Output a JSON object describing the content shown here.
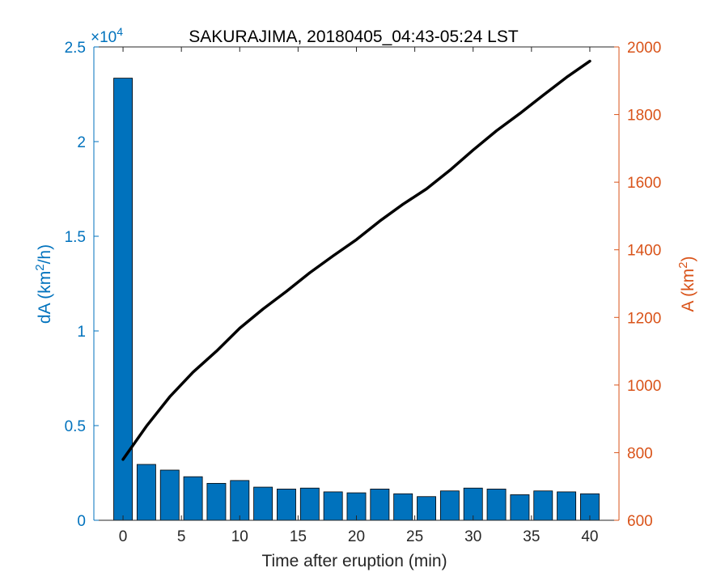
{
  "chart_data": {
    "type": "bar+line",
    "title": "SAKURAJIMA, 20180405_04:43-05:24 LST",
    "xlabel": "Time after eruption (min)",
    "xlim": [
      -2.5,
      42.5
    ],
    "xticks": [
      0,
      5,
      10,
      15,
      20,
      25,
      30,
      35,
      40
    ],
    "left_axis": {
      "label": "dA (km",
      "label_sup": "2",
      "label_tail": "/h)",
      "multiplier": "×10",
      "multiplier_exp": "4",
      "ylim": [
        0,
        2.5
      ],
      "ticks": [
        0,
        0.5,
        1,
        1.5,
        2,
        2.5
      ],
      "tick_labels": [
        "0",
        "0.5",
        "1",
        "1.5",
        "2",
        "2.5"
      ],
      "color": "#0072bd"
    },
    "right_axis": {
      "label": "A (km",
      "label_sup": "2",
      "label_tail": ")",
      "ylim": [
        600,
        2000
      ],
      "ticks": [
        600,
        800,
        1000,
        1200,
        1400,
        1600,
        1800,
        2000
      ],
      "tick_labels": [
        "600",
        "800",
        "1000",
        "1200",
        "1400",
        "1600",
        "1800",
        "2000"
      ],
      "color": "#d95319"
    },
    "bars": {
      "axis": "left",
      "color": "#0072bd",
      "x": [
        0,
        2,
        4,
        6,
        8,
        10,
        12,
        14,
        16,
        18,
        20,
        22,
        24,
        26,
        28,
        30,
        32,
        34,
        36,
        38,
        40
      ],
      "values": [
        2.335,
        0.295,
        0.265,
        0.23,
        0.195,
        0.21,
        0.175,
        0.165,
        0.17,
        0.15,
        0.145,
        0.165,
        0.14,
        0.125,
        0.155,
        0.17,
        0.165,
        0.135,
        0.155,
        0.15,
        0.14
      ]
    },
    "line": {
      "axis": "right",
      "color": "#000000",
      "x": [
        0,
        2,
        4,
        6,
        8,
        10,
        12,
        14,
        16,
        18,
        20,
        22,
        24,
        26,
        28,
        30,
        32,
        34,
        36,
        38,
        40
      ],
      "values": [
        780,
        878,
        965,
        1038,
        1100,
        1168,
        1225,
        1277,
        1332,
        1382,
        1430,
        1485,
        1535,
        1580,
        1635,
        1695,
        1752,
        1803,
        1857,
        1910,
        1958
      ]
    }
  }
}
